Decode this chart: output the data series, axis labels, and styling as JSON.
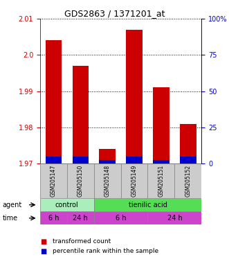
{
  "title": "GDS2863 / 1371201_at",
  "samples": [
    "GSM205147",
    "GSM205150",
    "GSM205148",
    "GSM205149",
    "GSM205151",
    "GSM205152"
  ],
  "red_values": [
    2.004,
    1.997,
    1.974,
    2.007,
    1.991,
    1.981
  ],
  "blue_values": [
    1.972,
    1.972,
    1.971,
    1.972,
    1.971,
    1.972
  ],
  "ylim_min": 1.97,
  "ylim_max": 2.01,
  "yticks_left": [
    1.97,
    1.98,
    1.99,
    2.0,
    2.01
  ],
  "yticks_right": [
    0,
    25,
    50,
    75,
    100
  ],
  "ytick_right_labels": [
    "0",
    "25",
    "50",
    "75",
    "100%"
  ],
  "bar_width": 0.6,
  "red_color": "#cc0000",
  "blue_color": "#0000cc",
  "agent_control_label": "control",
  "agent_acid_label": "tienilic acid",
  "control_color": "#aaeebb",
  "acid_color": "#55dd55",
  "time_color": "#cc44cc",
  "legend_red_label": "transformed count",
  "legend_blue_label": "percentile rank within the sample",
  "sample_box_color": "#cccccc"
}
